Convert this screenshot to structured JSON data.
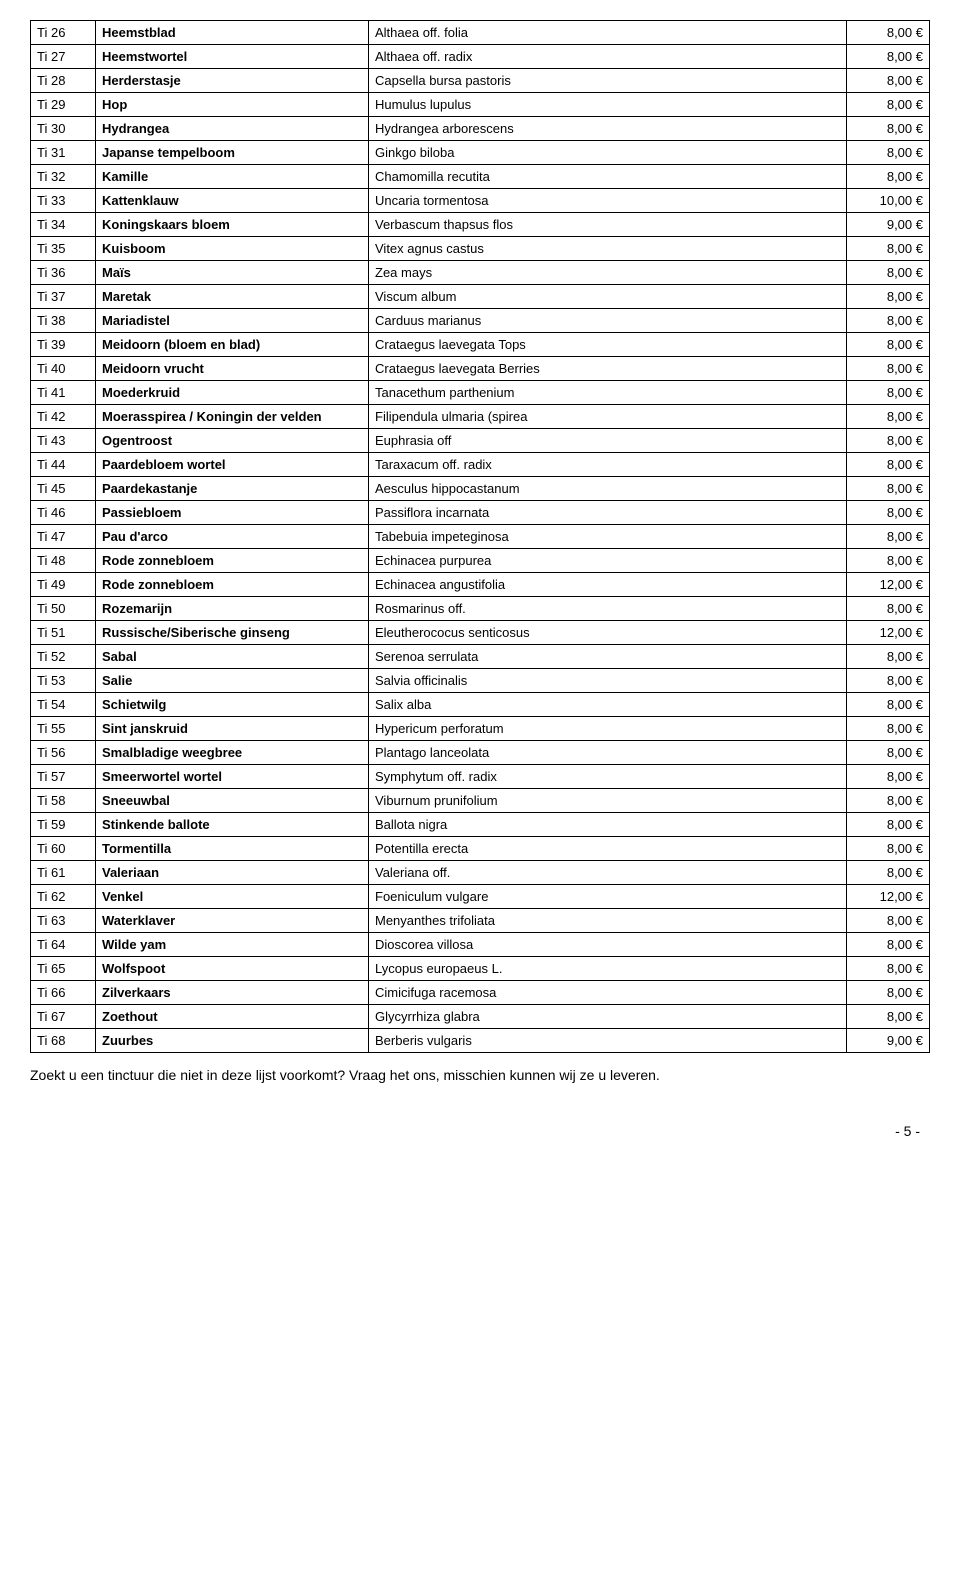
{
  "rows": [
    {
      "code": "Ti 26",
      "name": "Heemstblad",
      "latin": "Althaea off. folia",
      "price": "8,00 €"
    },
    {
      "code": "Ti 27",
      "name": "Heemstwortel",
      "latin": "Althaea off. radix",
      "price": "8,00 €"
    },
    {
      "code": "Ti 28",
      "name": "Herderstasje",
      "latin": "Capsella bursa pastoris",
      "price": "8,00 €"
    },
    {
      "code": "Ti 29",
      "name": "Hop",
      "latin": "Humulus lupulus",
      "price": "8,00 €"
    },
    {
      "code": "Ti 30",
      "name": "Hydrangea",
      "latin": "Hydrangea arborescens",
      "price": "8,00 €"
    },
    {
      "code": "Ti 31",
      "name": "Japanse tempelboom",
      "latin": "Ginkgo biloba",
      "price": "8,00 €"
    },
    {
      "code": "Ti 32",
      "name": "Kamille",
      "latin": "Chamomilla recutita",
      "price": "8,00 €"
    },
    {
      "code": "Ti 33",
      "name": "Kattenklauw",
      "latin": "Uncaria tormentosa",
      "price": "10,00 €"
    },
    {
      "code": "Ti 34",
      "name": "Koningskaars bloem",
      "latin": "Verbascum thapsus flos",
      "price": "9,00 €"
    },
    {
      "code": "Ti 35",
      "name": "Kuisboom",
      "latin": "Vitex agnus castus",
      "price": "8,00 €"
    },
    {
      "code": "Ti 36",
      "name": "Maïs",
      "latin": "Zea mays",
      "price": "8,00 €"
    },
    {
      "code": "Ti 37",
      "name": "Maretak",
      "latin": "Viscum album",
      "price": "8,00 €"
    },
    {
      "code": "Ti 38",
      "name": "Mariadistel",
      "latin": "Carduus marianus",
      "price": "8,00 €"
    },
    {
      "code": "Ti 39",
      "name": "Meidoorn (bloem en blad)",
      "latin": "Crataegus  laevegata Tops",
      "price": "8,00 €"
    },
    {
      "code": "Ti 40",
      "name": "Meidoorn vrucht",
      "latin": "Crataegus laevegata Berries",
      "price": "8,00 €"
    },
    {
      "code": "Ti 41",
      "name": "Moederkruid",
      "latin": "Tanacethum parthenium",
      "price": "8,00 €"
    },
    {
      "code": "Ti 42",
      "name": "Moerasspirea / Koningin der velden",
      "latin": "Filipendula ulmaria (spirea",
      "price": "8,00 €"
    },
    {
      "code": "Ti 43",
      "name": "Ogentroost",
      "latin": "Euphrasia  off",
      "price": "8,00 €"
    },
    {
      "code": "Ti 44",
      "name": "Paardebloem wortel",
      "latin": "Taraxacum off. radix",
      "price": "8,00 €"
    },
    {
      "code": "Ti 45",
      "name": "Paardekastanje",
      "latin": "Aesculus hippocastanum",
      "price": "8,00 €"
    },
    {
      "code": "Ti 46",
      "name": "Passiebloem",
      "latin": " Passiflora incarnata",
      "price": "8,00 €"
    },
    {
      "code": "Ti 47",
      "name": "Pau d'arco",
      "latin": "Tabebuia impeteginosa",
      "price": "8,00 €"
    },
    {
      "code": "Ti 48",
      "name": "Rode zonnebloem",
      "latin": "Echinacea purpurea",
      "price": "8,00 €"
    },
    {
      "code": "Ti 49",
      "name": "Rode zonnebloem",
      "latin": "Echinacea angustifolia",
      "price": "12,00 €"
    },
    {
      "code": "Ti 50",
      "name": "Rozemarijn",
      "latin": "Rosmarinus off.",
      "price": "8,00 €"
    },
    {
      "code": "Ti 51",
      "name": "Russische/Siberische ginseng",
      "latin": "Eleutherococus senticosus",
      "price": "12,00 €"
    },
    {
      "code": "Ti 52",
      "name": "Sabal",
      "latin": "Serenoa serrulata",
      "price": "8,00 €"
    },
    {
      "code": "Ti 53",
      "name": "Salie",
      "latin": "Salvia officinalis",
      "price": "8,00 €"
    },
    {
      "code": "Ti 54",
      "name": "Schietwilg",
      "latin": "Salix alba",
      "price": "8,00 €"
    },
    {
      "code": "Ti 55",
      "name": "Sint janskruid",
      "latin": "Hypericum perforatum",
      "price": "8,00 €"
    },
    {
      "code": "Ti 56",
      "name": "Smalbladige weegbree",
      "latin": "Plantago lanceolata",
      "price": "8,00 €"
    },
    {
      "code": "Ti 57",
      "name": "Smeerwortel wortel",
      "latin": "Symphytum off. radix",
      "price": "8,00 €"
    },
    {
      "code": "Ti 58",
      "name": "Sneeuwbal",
      "latin": "Viburnum prunifolium",
      "price": "8,00 €"
    },
    {
      "code": "Ti 59",
      "name": "Stinkende ballote",
      "latin": "Ballota nigra",
      "price": "8,00 €"
    },
    {
      "code": "Ti 60",
      "name": "Tormentilla",
      "latin": "Potentilla erecta",
      "price": "8,00 €"
    },
    {
      "code": "Ti 61",
      "name": "Valeriaan",
      "latin": "Valeriana off.",
      "price": "8,00 €"
    },
    {
      "code": "Ti 62",
      "name": "Venkel",
      "latin": "Foeniculum vulgare",
      "price": "12,00 €"
    },
    {
      "code": "Ti 63",
      "name": "Waterklaver",
      "latin": "Menyanthes trifoliata",
      "price": "8,00 €"
    },
    {
      "code": "Ti 64",
      "name": "Wilde yam",
      "latin": "Dioscorea villosa",
      "price": "8,00 €"
    },
    {
      "code": "Ti 65",
      "name": "Wolfspoot",
      "latin": "Lycopus europaeus L.",
      "price": "8,00 €"
    },
    {
      "code": "Ti 66",
      "name": "Zilverkaars",
      "latin": "Cimicifuga racemosa",
      "price": "8,00 €"
    },
    {
      "code": "Ti 67",
      "name": "Zoethout",
      "latin": "Glycyrrhiza glabra",
      "price": "8,00 €"
    },
    {
      "code": "Ti 68",
      "name": "Zuurbes",
      "latin": "Berberis  vulgaris",
      "price": "9,00 €"
    }
  ],
  "footer_text": "Zoekt u een tinctuur die niet in deze lijst voorkomt? Vraag het ons, misschien kunnen wij ze u leveren.",
  "page_number": "- 5 -"
}
